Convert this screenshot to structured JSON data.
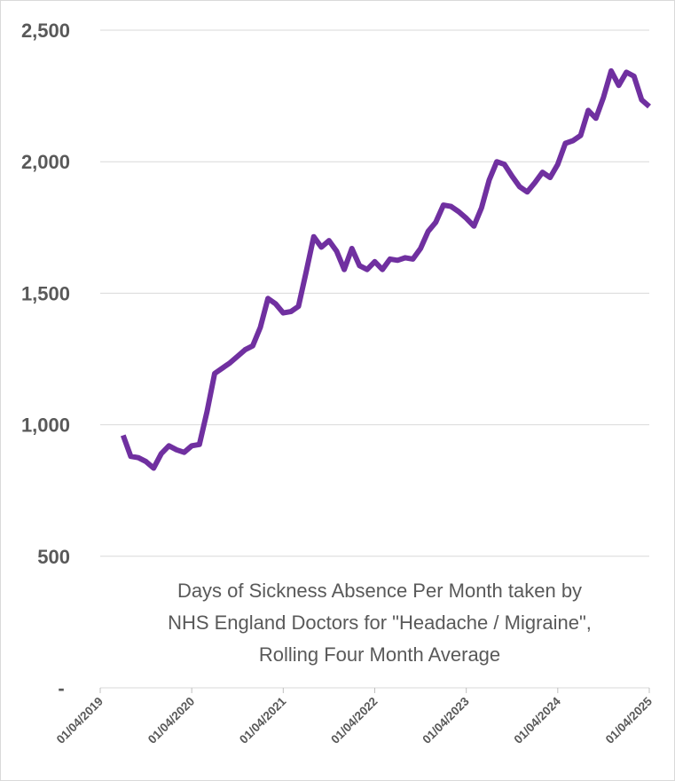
{
  "chart_data": {
    "type": "line",
    "title_lines": [
      "Days of Sickness Absence Per Month taken by",
      "NHS England Doctors for \"Headache / Migraine\",",
      "Rolling Four Month Average"
    ],
    "xlabel": "",
    "ylabel": "",
    "ylim": [
      0,
      2500
    ],
    "y_ticks": [
      0,
      500,
      1000,
      1500,
      2000,
      2500
    ],
    "y_tick_labels": [
      "-",
      "500",
      "1,000",
      "1,500",
      "2,000",
      "2,500"
    ],
    "x_tick_labels": [
      "01/04/2019",
      "01/04/2020",
      "01/04/2021",
      "01/04/2022",
      "01/04/2023",
      "01/04/2024",
      "01/04/2025"
    ],
    "x_range_months": [
      0,
      72
    ],
    "grid": true,
    "line_color": "#7030a0",
    "series": [
      {
        "name": "Headache / Migraine",
        "x_months": [
          3,
          4,
          5,
          6,
          7,
          8,
          9,
          10,
          11,
          12,
          13,
          14,
          15,
          16,
          17,
          18,
          19,
          20,
          21,
          22,
          23,
          24,
          25,
          26,
          27,
          28,
          29,
          30,
          31,
          32,
          33,
          34,
          35,
          36,
          37,
          38,
          39,
          40,
          41,
          42,
          43,
          44,
          45,
          46,
          47,
          48,
          49,
          50,
          51,
          52,
          53,
          54,
          55,
          56,
          57,
          58,
          59,
          60,
          61,
          62,
          63,
          64,
          65,
          66,
          67,
          68,
          69,
          70,
          71,
          72
        ],
        "values": [
          960,
          880,
          875,
          860,
          835,
          890,
          920,
          905,
          895,
          920,
          925,
          1050,
          1195,
          1215,
          1235,
          1260,
          1285,
          1300,
          1370,
          1480,
          1460,
          1425,
          1430,
          1450,
          1580,
          1715,
          1675,
          1700,
          1660,
          1590,
          1670,
          1605,
          1590,
          1620,
          1590,
          1630,
          1625,
          1635,
          1630,
          1670,
          1735,
          1770,
          1835,
          1830,
          1810,
          1785,
          1755,
          1825,
          1930,
          2000,
          1990,
          1945,
          1905,
          1885,
          1920,
          1960,
          1940,
          1990,
          2070,
          2080,
          2100,
          2195,
          2165,
          2245,
          2345,
          2290,
          2340,
          2325,
          2235,
          2210
        ]
      }
    ]
  }
}
